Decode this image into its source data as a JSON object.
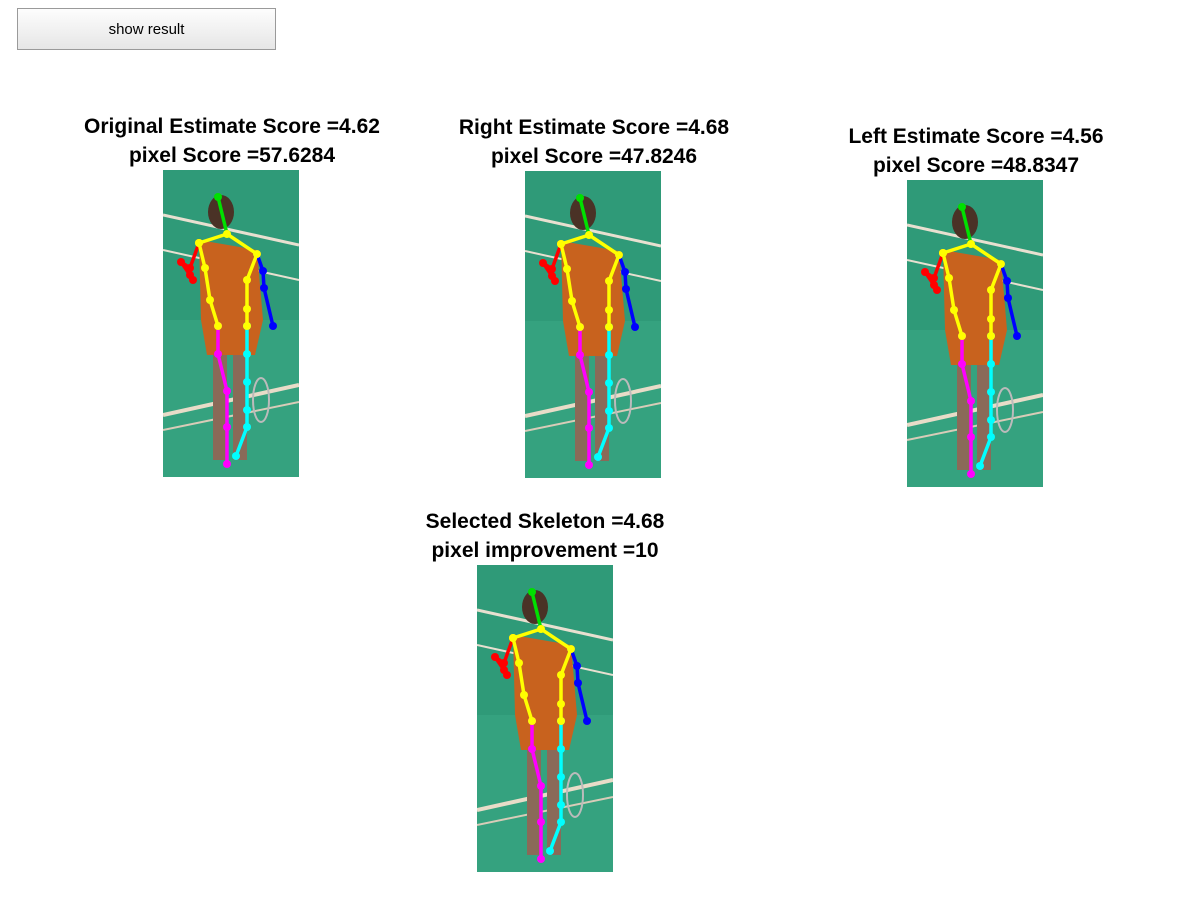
{
  "toolbar": {
    "show_result_label": "show result"
  },
  "panels": [
    {
      "id": "original",
      "title": "Original Estimate Score =4.62",
      "subtitle": "pixel Score =57.6284"
    },
    {
      "id": "right",
      "title": "Right Estimate Score =4.68",
      "subtitle": "pixel Score =47.8246"
    },
    {
      "id": "left",
      "title": "Left Estimate Score =4.56",
      "subtitle": "pixel Score =48.8347"
    },
    {
      "id": "selected",
      "title": "Selected Skeleton =4.68",
      "subtitle": "pixel improvement =10"
    }
  ],
  "skeleton_colors": {
    "head": "#00e000",
    "torso": "#ffff00",
    "right_arm": "#ff0000",
    "left_arm": "#0000ff",
    "right_leg": "#ff00ff",
    "left_leg": "#00ffff"
  }
}
